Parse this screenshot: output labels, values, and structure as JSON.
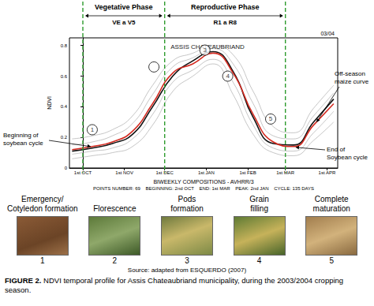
{
  "chart_data": {
    "type": "line",
    "title": "ASSIS CHATEAUBRIAND",
    "subtitle": "03/04",
    "xlabel": "BIWEEKLY COMPOSITIONS - AVHRR/3",
    "ylabel": "NDVI",
    "footer_items": [
      "POINTS NUMBER: 69",
      "BEGINNING: 2nd OCT",
      "END: 1st MAR",
      "PEAK: 2nd JAN",
      "CYCLE: 135 DAYS"
    ],
    "x": [
      -8,
      7,
      22,
      37,
      52,
      67,
      82,
      97,
      112,
      127,
      142,
      157,
      172,
      187
    ],
    "series": [
      {
        "color": "#a0a0a0",
        "values": [
          0.19,
          0.21,
          0.25,
          0.34,
          0.54,
          0.7,
          0.75,
          0.8,
          0.74,
          0.5,
          0.27,
          0.23,
          0.39,
          0.54
        ]
      },
      {
        "color": "#a0a0a0",
        "values": [
          0.15,
          0.17,
          0.21,
          0.29,
          0.48,
          0.66,
          0.72,
          0.78,
          0.68,
          0.42,
          0.21,
          0.19,
          0.34,
          0.49
        ]
      },
      {
        "color": "#a0a0a0",
        "values": [
          0.09,
          0.11,
          0.13,
          0.19,
          0.35,
          0.56,
          0.64,
          0.71,
          0.56,
          0.28,
          0.13,
          0.11,
          0.23,
          0.37
        ]
      },
      {
        "color": "#a0a0a0",
        "values": [
          0.06,
          0.08,
          0.1,
          0.14,
          0.28,
          0.5,
          0.6,
          0.68,
          0.48,
          0.22,
          0.1,
          0.08,
          0.18,
          0.3
        ]
      },
      {
        "color": "#111111",
        "values": [
          0.11,
          0.13,
          0.16,
          0.22,
          0.4,
          0.6,
          0.7,
          0.76,
          0.63,
          0.33,
          0.16,
          0.15,
          0.3,
          0.45
        ]
      },
      {
        "color": "#d42a20",
        "values": [
          0.12,
          0.14,
          0.17,
          0.24,
          0.42,
          0.62,
          0.68,
          0.75,
          0.62,
          0.35,
          0.17,
          0.14,
          0.28,
          0.42
        ]
      }
    ],
    "xlim": [
      -10,
      190
    ],
    "xticks": [
      {
        "value": 0,
        "label": "1st OCT"
      },
      {
        "value": 31,
        "label": "1st NOV"
      },
      {
        "value": 61,
        "label": "1st DEC"
      },
      {
        "value": 92,
        "label": "1st JAN"
      },
      {
        "value": 123,
        "label": "1st FEB"
      },
      {
        "value": 151,
        "label": "1st MAR"
      },
      {
        "value": 182,
        "label": "1st APR"
      }
    ],
    "ylim": [
      0,
      0.85
    ],
    "yticks": [
      0,
      0.2,
      0.4,
      0.6,
      0.8
    ],
    "grid": false,
    "phases": [
      {
        "label": "Vegetative Phase",
        "stages": "VE a V5",
        "start": 0,
        "end": 61
      },
      {
        "label": "Reproductive Phase",
        "stages": "R1 a R8",
        "start": 61,
        "end": 151
      }
    ],
    "markers": [
      {
        "label": "1",
        "x": 7,
        "y": 0.25
      },
      {
        "label": null,
        "x": 53,
        "y": 0.66
      },
      {
        "label": "3",
        "x": 91,
        "y": 0.77
      },
      {
        "label": "4",
        "x": 108,
        "y": 0.6
      },
      {
        "label": "5",
        "x": 140,
        "y": 0.32
      }
    ],
    "annotations": [
      [
        "Beginning of",
        "soybean cycle"
      ],
      [
        "Off-season",
        "maize curve"
      ],
      [
        "End of",
        "Soybean cycle"
      ]
    ]
  },
  "stages": [
    {
      "number": "1",
      "label": [
        "Emergency/",
        "Cotyledon formation"
      ]
    },
    {
      "number": "2",
      "label": [
        "Florescence"
      ]
    },
    {
      "number": "3",
      "label": [
        "Pods",
        "formation"
      ]
    },
    {
      "number": "4",
      "label": [
        "Grain",
        "filling"
      ]
    },
    {
      "number": "5",
      "label": [
        "Complete",
        "maturation"
      ]
    }
  ],
  "source": "Source: adapted from ESQUERDO (2007)",
  "caption": {
    "label": "FIGURE 2.",
    "text": "NDVI temporal profile for Assis Chateaubriand municipality, during the 2003/2004 cropping season."
  }
}
